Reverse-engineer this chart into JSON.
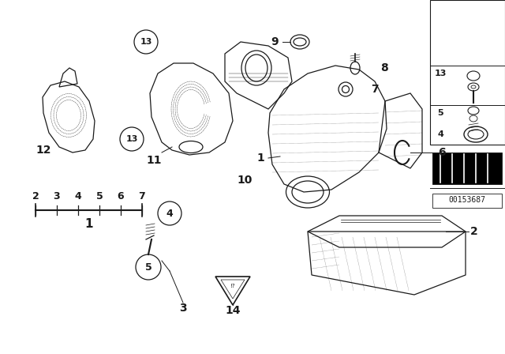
{
  "bg_color": "#ffffff",
  "line_color": "#1a1a1a",
  "fig_width": 6.4,
  "fig_height": 4.48,
  "dpi": 100,
  "part_number": "00153687"
}
